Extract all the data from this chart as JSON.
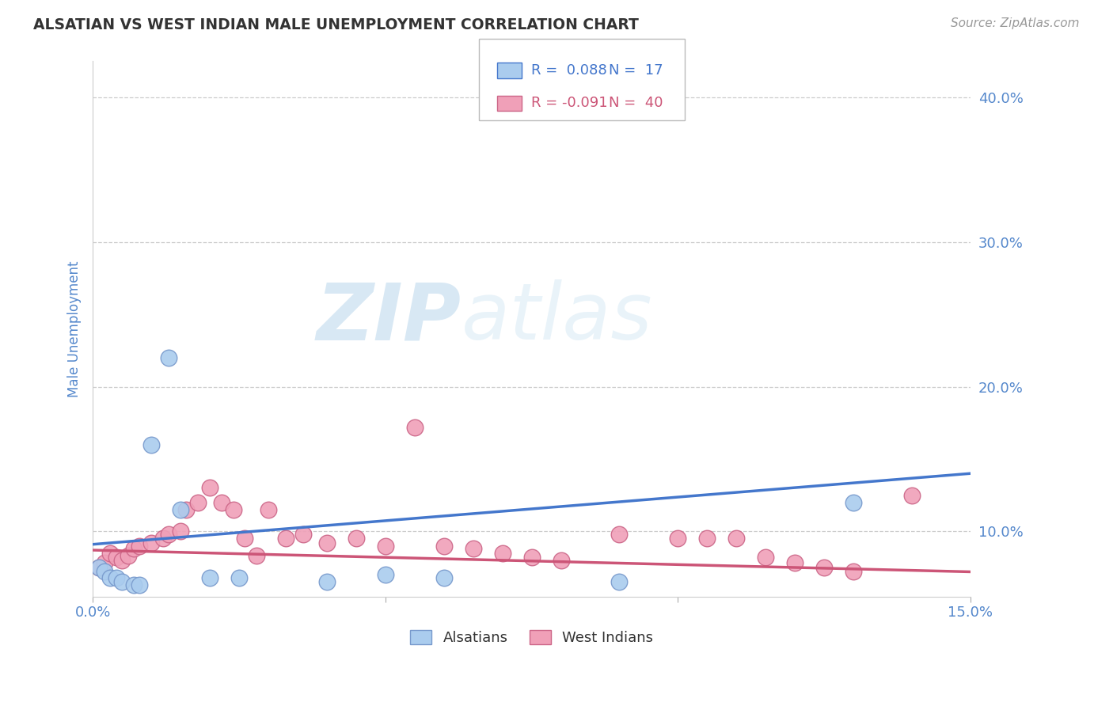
{
  "title": "ALSATIAN VS WEST INDIAN MALE UNEMPLOYMENT CORRELATION CHART",
  "source": "Source: ZipAtlas.com",
  "ylabel": "Male Unemployment",
  "xlim": [
    0.0,
    0.15
  ],
  "ylim": [
    0.055,
    0.425
  ],
  "xticks": [
    0.0,
    0.05,
    0.1,
    0.15
  ],
  "xtick_labels": [
    "0.0%",
    "",
    "",
    "15.0%"
  ],
  "ytick_labels_right": [
    "40.0%",
    "30.0%",
    "20.0%",
    "10.0%"
  ],
  "ytick_vals_right": [
    0.4,
    0.3,
    0.2,
    0.1
  ],
  "background_color": "#ffffff",
  "grid_color": "#cccccc",
  "alsatian_color": "#aaccee",
  "alsatian_edge_color": "#7799cc",
  "west_indian_color": "#f0a0b8",
  "west_indian_edge_color": "#cc6688",
  "blue_line_color": "#4477cc",
  "pink_line_color": "#cc5577",
  "legend_R_alsatian": "R =  0.088",
  "legend_N_alsatian": "N =  17",
  "legend_R_west_indian": "R = -0.091",
  "legend_N_west_indian": "N =  40",
  "alsatian_x": [
    0.001,
    0.002,
    0.003,
    0.004,
    0.005,
    0.007,
    0.008,
    0.01,
    0.013,
    0.015,
    0.02,
    0.025,
    0.04,
    0.05,
    0.06,
    0.13,
    0.09
  ],
  "alsatian_y": [
    0.075,
    0.072,
    0.068,
    0.068,
    0.065,
    0.063,
    0.063,
    0.16,
    0.22,
    0.115,
    0.068,
    0.068,
    0.065,
    0.07,
    0.068,
    0.12,
    0.065
  ],
  "west_indian_x": [
    0.001,
    0.002,
    0.003,
    0.004,
    0.005,
    0.006,
    0.007,
    0.008,
    0.01,
    0.012,
    0.013,
    0.015,
    0.016,
    0.018,
    0.02,
    0.022,
    0.024,
    0.026,
    0.028,
    0.03,
    0.033,
    0.036,
    0.04,
    0.045,
    0.05,
    0.055,
    0.06,
    0.065,
    0.07,
    0.075,
    0.08,
    0.09,
    0.1,
    0.105,
    0.11,
    0.115,
    0.12,
    0.125,
    0.13,
    0.14
  ],
  "west_indian_y": [
    0.075,
    0.078,
    0.085,
    0.082,
    0.08,
    0.083,
    0.088,
    0.09,
    0.092,
    0.095,
    0.098,
    0.1,
    0.115,
    0.12,
    0.13,
    0.12,
    0.115,
    0.095,
    0.083,
    0.115,
    0.095,
    0.098,
    0.092,
    0.095,
    0.09,
    0.172,
    0.09,
    0.088,
    0.085,
    0.082,
    0.08,
    0.098,
    0.095,
    0.095,
    0.095,
    0.082,
    0.078,
    0.075,
    0.072,
    0.125
  ],
  "blue_line_x": [
    0.0,
    0.15
  ],
  "blue_line_y": [
    0.091,
    0.14
  ],
  "pink_line_x": [
    0.0,
    0.15
  ],
  "pink_line_y": [
    0.087,
    0.072
  ],
  "watermark_zip": "ZIP",
  "watermark_atlas": "atlas",
  "title_color": "#333333",
  "tick_color": "#5588cc",
  "ylabel_color": "#5588cc"
}
